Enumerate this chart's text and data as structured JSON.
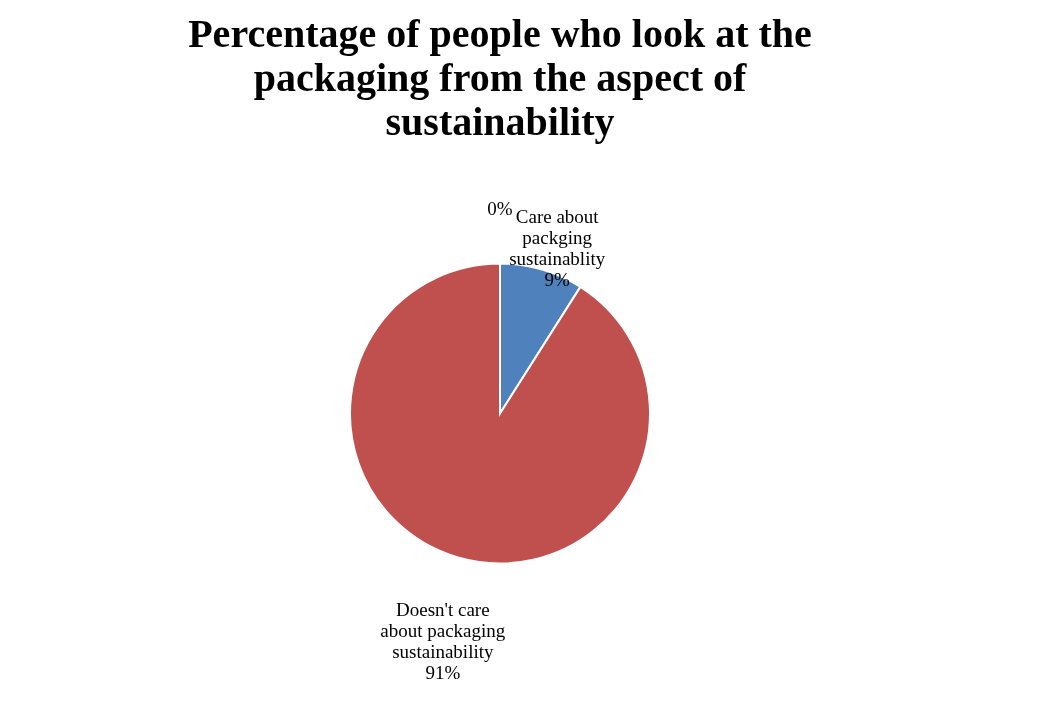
{
  "chart_data": {
    "type": "pie",
    "title": "Percentage of people who look at the packaging from the aspect of sustainability",
    "categories": [
      null,
      "Care about packging sustainablity",
      "Doesn't care about packaging sustainability"
    ],
    "values": [
      0,
      9,
      91
    ],
    "colors": [
      "#9bbb59",
      "#4f81bd",
      "#c0504d"
    ],
    "value_labels": [
      "0%",
      "9%",
      "91%"
    ],
    "legend": false
  }
}
